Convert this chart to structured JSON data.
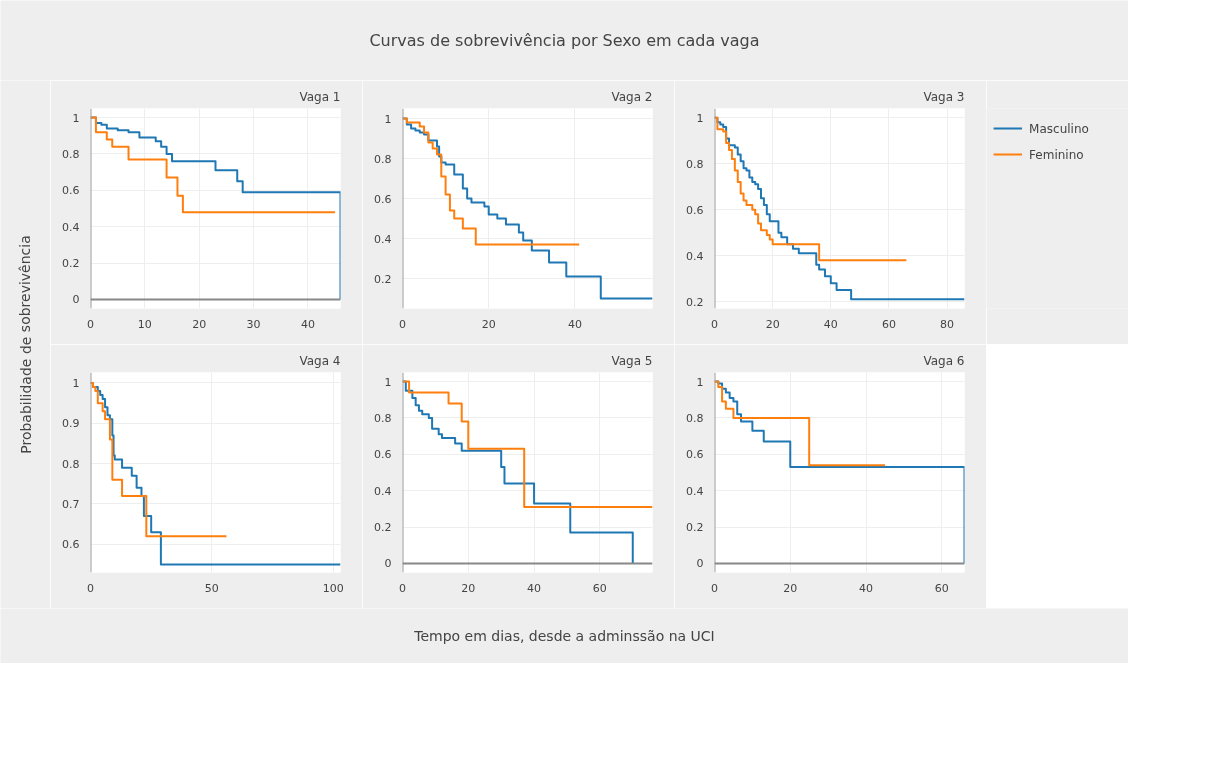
{
  "chart_data": [
    {
      "type": "step",
      "title": "Vaga 1",
      "annotations": [
        "Curvas de sobrevivência por Sexo em cada vaga"
      ],
      "ylabel": "Probabilidade de sobrevivência",
      "xlim": [
        0,
        46
      ],
      "ylim": [
        -0.05,
        1.05
      ],
      "xticks": [
        0,
        10,
        20,
        30,
        40
      ],
      "yticks": [
        0,
        0.2,
        0.4,
        0.6,
        0.8,
        1
      ],
      "grid": true,
      "series": [
        {
          "color": "#1f77b4",
          "x": [
            0,
            1,
            2,
            3,
            5,
            7,
            9,
            12,
            13,
            14,
            15,
            23,
            27,
            28,
            46
          ],
          "values": [
            1,
            0.97,
            0.96,
            0.94,
            0.93,
            0.92,
            0.89,
            0.87,
            0.84,
            0.8,
            0.76,
            0.71,
            0.65,
            0.59,
            0
          ]
        },
        {
          "color": "#ff7f0e",
          "x": [
            0,
            1,
            3,
            4,
            7,
            14,
            16,
            17,
            45
          ],
          "values": [
            1,
            0.92,
            0.88,
            0.84,
            0.77,
            0.67,
            0.57,
            0.48,
            0.48
          ]
        }
      ]
    },
    {
      "type": "step",
      "title": "Vaga 2",
      "xlim": [
        0,
        58
      ],
      "ylim": [
        0.05,
        1.05
      ],
      "xticks": [
        0,
        20,
        40
      ],
      "yticks": [
        0.2,
        0.4,
        0.6,
        0.8,
        1
      ],
      "grid": true,
      "series": [
        {
          "color": "#1f77b4",
          "x": [
            0,
            1,
            2,
            3,
            4,
            5,
            6,
            8,
            8.5,
            9,
            10,
            12,
            14,
            15,
            16,
            19,
            20,
            22,
            24,
            27,
            28,
            30,
            34,
            38,
            46,
            58
          ],
          "values": [
            1,
            0.97,
            0.95,
            0.94,
            0.93,
            0.92,
            0.89,
            0.86,
            0.81,
            0.78,
            0.77,
            0.72,
            0.65,
            0.6,
            0.58,
            0.56,
            0.52,
            0.5,
            0.47,
            0.43,
            0.39,
            0.34,
            0.28,
            0.21,
            0.1,
            0.1
          ]
        },
        {
          "color": "#ff7f0e",
          "x": [
            0,
            1,
            4,
            5,
            6,
            7,
            8,
            9,
            10,
            11,
            12,
            14,
            17,
            41
          ],
          "values": [
            1,
            0.98,
            0.96,
            0.93,
            0.88,
            0.85,
            0.82,
            0.71,
            0.62,
            0.54,
            0.5,
            0.45,
            0.37,
            0.37
          ]
        }
      ]
    },
    {
      "type": "step",
      "title": "Vaga 3",
      "legend": "right",
      "xlim": [
        0,
        86
      ],
      "ylim": [
        0.17,
        1.04
      ],
      "xticks": [
        0,
        20,
        40,
        60,
        80
      ],
      "yticks": [
        0.2,
        0.4,
        0.6,
        0.8,
        1
      ],
      "grid": true,
      "series": [
        {
          "name": "Masculino",
          "color": "#1f77b4",
          "x": [
            0,
            1,
            2,
            3,
            4,
            5,
            7,
            8,
            9,
            10,
            11,
            12,
            13,
            14,
            15,
            16,
            17,
            18,
            19,
            22,
            23,
            25,
            27,
            29,
            35,
            36,
            38,
            40,
            42,
            47,
            86
          ],
          "values": [
            1,
            0.98,
            0.97,
            0.96,
            0.91,
            0.88,
            0.87,
            0.84,
            0.81,
            0.78,
            0.77,
            0.74,
            0.72,
            0.71,
            0.69,
            0.65,
            0.62,
            0.58,
            0.55,
            0.5,
            0.48,
            0.45,
            0.43,
            0.41,
            0.36,
            0.34,
            0.31,
            0.28,
            0.25,
            0.21,
            0.21
          ]
        },
        {
          "name": "Feminino",
          "color": "#ff7f0e",
          "x": [
            0,
            1,
            3,
            4,
            5,
            6,
            7,
            8,
            9,
            10,
            11,
            13,
            14,
            15,
            16,
            18,
            19,
            20,
            36,
            66
          ],
          "values": [
            1,
            0.95,
            0.94,
            0.89,
            0.86,
            0.82,
            0.77,
            0.72,
            0.67,
            0.64,
            0.62,
            0.6,
            0.58,
            0.54,
            0.51,
            0.49,
            0.47,
            0.45,
            0.38,
            0.38
          ]
        }
      ]
    },
    {
      "type": "step",
      "title": "Vaga 4",
      "xlim": [
        0,
        103
      ],
      "ylim": [
        0.53,
        1.026
      ],
      "xticks": [
        0,
        50,
        100
      ],
      "yticks": [
        0.6,
        0.7,
        0.8,
        0.9,
        1
      ],
      "grid": true,
      "series": [
        {
          "color": "#1f77b4",
          "x": [
            0,
            1,
            3,
            4,
            5,
            6,
            7,
            8,
            9,
            9.5,
            10,
            13,
            17,
            19,
            21,
            22,
            25,
            29,
            103
          ],
          "values": [
            1,
            0.99,
            0.98,
            0.97,
            0.96,
            0.94,
            0.92,
            0.91,
            0.87,
            0.82,
            0.81,
            0.79,
            0.77,
            0.74,
            0.72,
            0.67,
            0.63,
            0.55,
            0.55
          ]
        },
        {
          "color": "#ff7f0e",
          "x": [
            0,
            1,
            2,
            3,
            5,
            6,
            8,
            9,
            13,
            23,
            56
          ],
          "values": [
            1,
            0.99,
            0.98,
            0.95,
            0.93,
            0.91,
            0.86,
            0.76,
            0.72,
            0.62,
            0.62
          ]
        }
      ]
    },
    {
      "type": "step",
      "title": "Vaga 5",
      "xlabel": "Tempo em dias, desde a adminssão na UCI",
      "xlim": [
        0,
        76
      ],
      "ylim": [
        -0.05,
        1.05
      ],
      "xticks": [
        0,
        20,
        40,
        60
      ],
      "yticks": [
        0,
        0.2,
        0.4,
        0.6,
        0.8,
        1
      ],
      "grid": true,
      "series": [
        {
          "color": "#1f77b4",
          "x": [
            0,
            1,
            3,
            4,
            5,
            6,
            8,
            9,
            11,
            12,
            16,
            18,
            30,
            31,
            40,
            51,
            70
          ],
          "values": [
            1,
            0.95,
            0.91,
            0.87,
            0.84,
            0.82,
            0.8,
            0.74,
            0.71,
            0.69,
            0.66,
            0.62,
            0.53,
            0.44,
            0.33,
            0.17,
            0
          ]
        },
        {
          "color": "#ff7f0e",
          "x": [
            0,
            2,
            14,
            18,
            20,
            37,
            76
          ],
          "values": [
            1,
            0.94,
            0.88,
            0.78,
            0.63,
            0.31,
            0.31
          ]
        }
      ]
    },
    {
      "type": "step",
      "title": "Vaga 6",
      "xlim": [
        0,
        66
      ],
      "ylim": [
        -0.05,
        1.05
      ],
      "xticks": [
        0,
        20,
        40,
        60
      ],
      "yticks": [
        0,
        0.2,
        0.4,
        0.6,
        0.8,
        1
      ],
      "grid": true,
      "series": [
        {
          "color": "#1f77b4",
          "x": [
            0,
            1,
            2,
            3,
            4,
            5,
            6,
            7,
            10,
            13,
            20,
            66
          ],
          "values": [
            1,
            0.99,
            0.96,
            0.94,
            0.91,
            0.89,
            0.82,
            0.78,
            0.73,
            0.67,
            0.53,
            0
          ]
        },
        {
          "color": "#ff7f0e",
          "x": [
            0,
            1,
            2,
            3,
            5,
            25,
            45
          ],
          "values": [
            1,
            0.97,
            0.89,
            0.85,
            0.8,
            0.54,
            0.54
          ]
        }
      ]
    }
  ]
}
